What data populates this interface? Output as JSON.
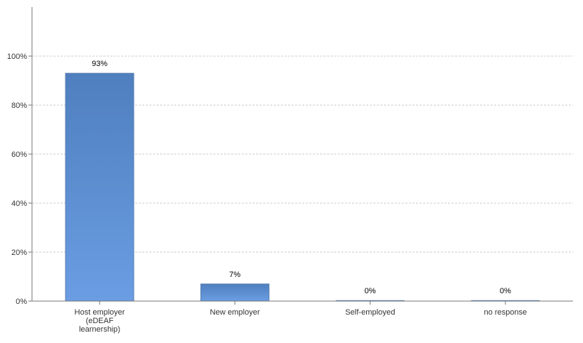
{
  "chart_data": {
    "type": "bar",
    "categories": [
      "Host employer (eDEAF learnership)",
      "New employer",
      "Self-employed",
      "no response"
    ],
    "category_lines": [
      [
        "Host employer",
        "(eDEAF",
        "learnership)"
      ],
      [
        "New employer"
      ],
      [
        "Self-employed"
      ],
      [
        "no response"
      ]
    ],
    "values": [
      93,
      7,
      0,
      0
    ],
    "value_labels": [
      "93%",
      "7%",
      "0%",
      "0%"
    ],
    "y_ticks": [
      "0%",
      "20%",
      "40%",
      "60%",
      "80%",
      "100%"
    ],
    "ylim": [
      0,
      120
    ],
    "grid": true,
    "legend": "none",
    "colors": {
      "bar_top": "#4f7fbe",
      "bar_bottom": "#6a9de3",
      "bar_stroke": "#5b7fb0",
      "grid": "#cccccc",
      "axis": "#777777"
    }
  }
}
